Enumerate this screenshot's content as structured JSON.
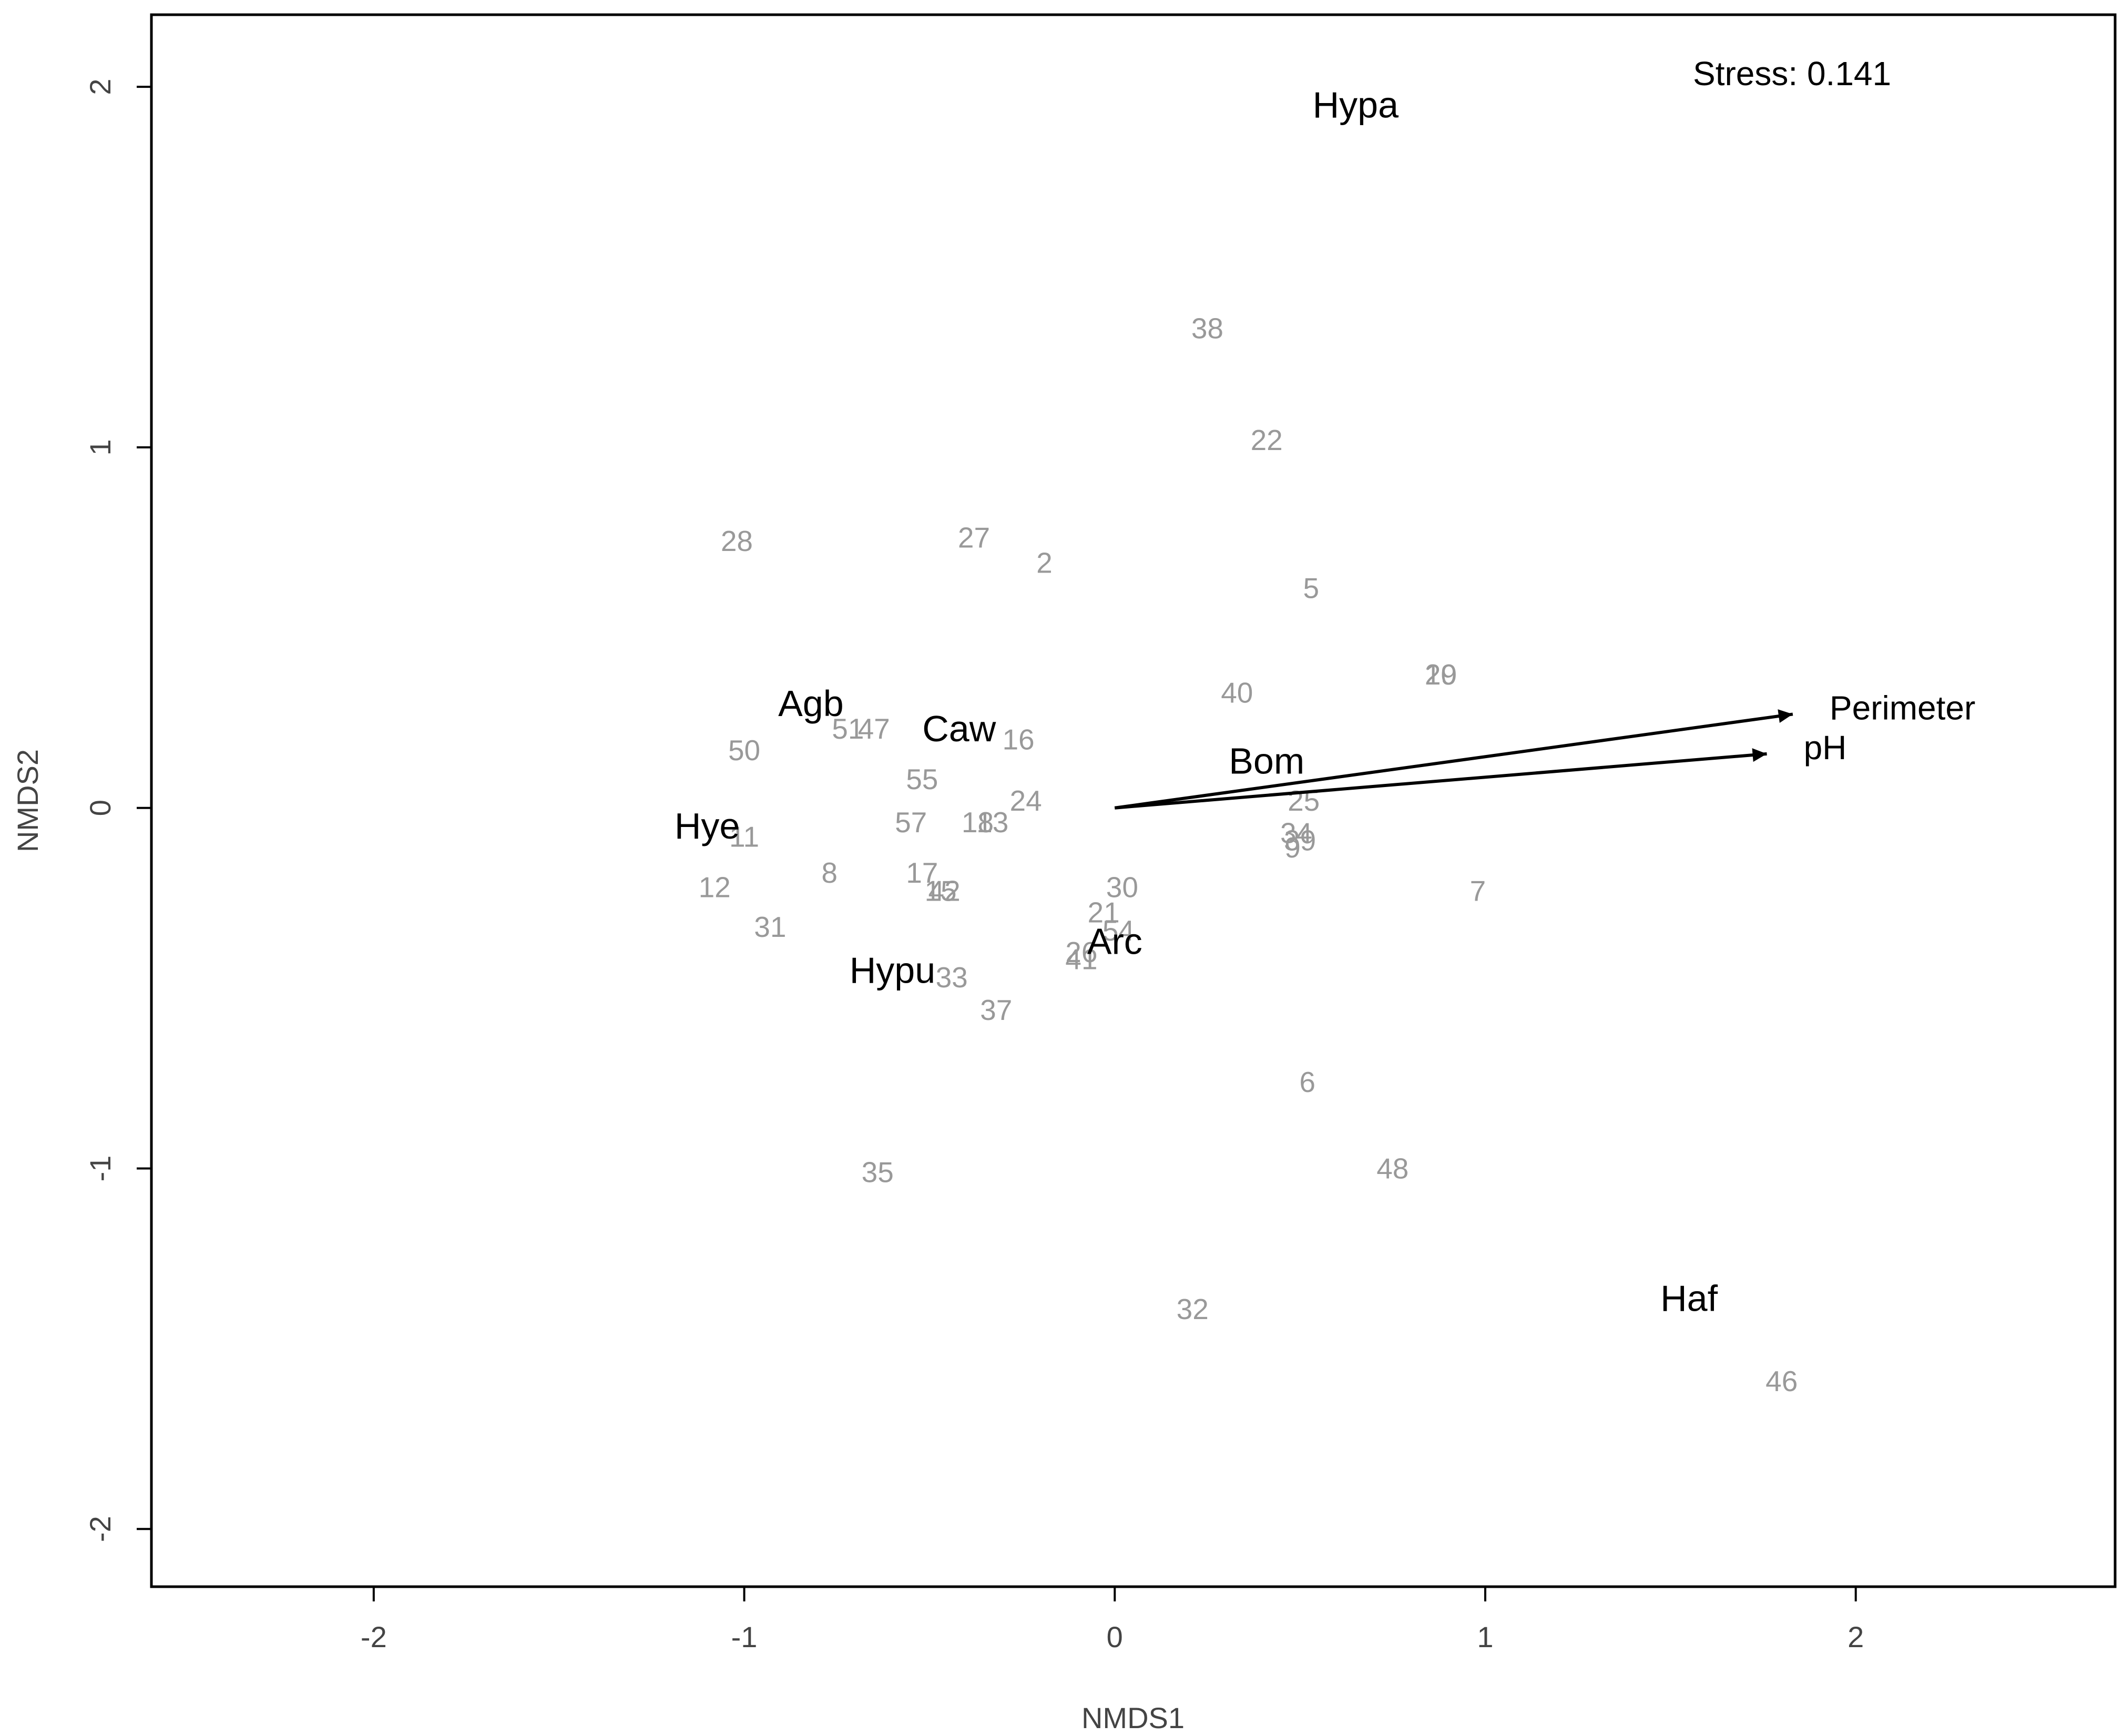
{
  "chart_data": {
    "type": "scatter",
    "title": "",
    "xlabel": "NMDS1",
    "ylabel": "NMDS2",
    "xlim": [
      -2.6,
      2.7
    ],
    "ylim": [
      -2.16,
      2.2
    ],
    "grid": false,
    "x_ticks": [
      -2,
      -1,
      0,
      1,
      2
    ],
    "y_ticks": [
      -2,
      -1,
      0,
      1,
      2
    ],
    "annotation": "Stress: 0.141",
    "colors": {
      "site": "#999999",
      "species": "#000000",
      "arrow": "#000000",
      "axis": "#000000"
    },
    "sites": [
      {
        "label": "38",
        "x": 0.25,
        "y": 1.33
      },
      {
        "label": "22",
        "x": 0.41,
        "y": 1.02
      },
      {
        "label": "28",
        "x": -1.02,
        "y": 0.74
      },
      {
        "label": "27",
        "x": -0.38,
        "y": 0.75
      },
      {
        "label": "2",
        "x": -0.19,
        "y": 0.68
      },
      {
        "label": "5",
        "x": 0.53,
        "y": 0.61
      },
      {
        "label": "40",
        "x": 0.33,
        "y": 0.32
      },
      {
        "label": "19",
        "x": 0.88,
        "y": 0.37
      },
      {
        "label": "20",
        "x": 0.88,
        "y": 0.37
      },
      {
        "label": "50",
        "x": -1.0,
        "y": 0.16
      },
      {
        "label": "51",
        "x": -0.72,
        "y": 0.22
      },
      {
        "label": "47",
        "x": -0.65,
        "y": 0.22
      },
      {
        "label": "16",
        "x": -0.26,
        "y": 0.19
      },
      {
        "label": "55",
        "x": -0.52,
        "y": 0.08
      },
      {
        "label": "24",
        "x": -0.24,
        "y": 0.02
      },
      {
        "label": "25",
        "x": 0.51,
        "y": 0.02
      },
      {
        "label": "57",
        "x": -0.55,
        "y": -0.04
      },
      {
        "label": "18",
        "x": -0.37,
        "y": -0.04
      },
      {
        "label": "13",
        "x": -0.33,
        "y": -0.04
      },
      {
        "label": "34",
        "x": 0.49,
        "y": -0.07
      },
      {
        "label": "39",
        "x": 0.5,
        "y": -0.09
      },
      {
        "label": "9",
        "x": 0.48,
        "y": -0.11
      },
      {
        "label": "11",
        "x": -1.0,
        "y": -0.08
      },
      {
        "label": "8",
        "x": -0.77,
        "y": -0.18
      },
      {
        "label": "17",
        "x": -0.52,
        "y": -0.18
      },
      {
        "label": "15",
        "x": -0.47,
        "y": -0.23
      },
      {
        "label": "42",
        "x": -0.46,
        "y": -0.23
      },
      {
        "label": "12",
        "x": -1.08,
        "y": -0.22
      },
      {
        "label": "30",
        "x": 0.02,
        "y": -0.22
      },
      {
        "label": "7",
        "x": 0.98,
        "y": -0.23
      },
      {
        "label": "21",
        "x": -0.03,
        "y": -0.29
      },
      {
        "label": "54",
        "x": 0.01,
        "y": -0.34
      },
      {
        "label": "31",
        "x": -0.93,
        "y": -0.33
      },
      {
        "label": "26",
        "x": -0.09,
        "y": -0.4
      },
      {
        "label": "41",
        "x": -0.09,
        "y": -0.42
      },
      {
        "label": "33",
        "x": -0.44,
        "y": -0.47
      },
      {
        "label": "37",
        "x": -0.32,
        "y": -0.56
      },
      {
        "label": "6",
        "x": 0.52,
        "y": -0.76
      },
      {
        "label": "48",
        "x": 0.75,
        "y": -1.0
      },
      {
        "label": "35",
        "x": -0.64,
        "y": -1.01
      },
      {
        "label": "32",
        "x": 0.21,
        "y": -1.39
      },
      {
        "label": "46",
        "x": 1.8,
        "y": -1.59
      }
    ],
    "species": [
      {
        "label": "Hypa",
        "x": 0.65,
        "y": 1.95
      },
      {
        "label": "Agb",
        "x": -0.82,
        "y": 0.29
      },
      {
        "label": "Caw",
        "x": -0.42,
        "y": 0.22
      },
      {
        "label": "Bom",
        "x": 0.41,
        "y": 0.13
      },
      {
        "label": "Hye",
        "x": -1.1,
        "y": -0.05
      },
      {
        "label": "Arc",
        "x": 0.0,
        "y": -0.37
      },
      {
        "label": "Hypu",
        "x": -0.6,
        "y": -0.45
      },
      {
        "label": "Haf",
        "x": 1.55,
        "y": -1.36
      }
    ],
    "vectors": [
      {
        "label": "Perimeter",
        "x": 1.83,
        "y": 0.26
      },
      {
        "label": "pH",
        "x": 1.76,
        "y": 0.15
      }
    ]
  }
}
